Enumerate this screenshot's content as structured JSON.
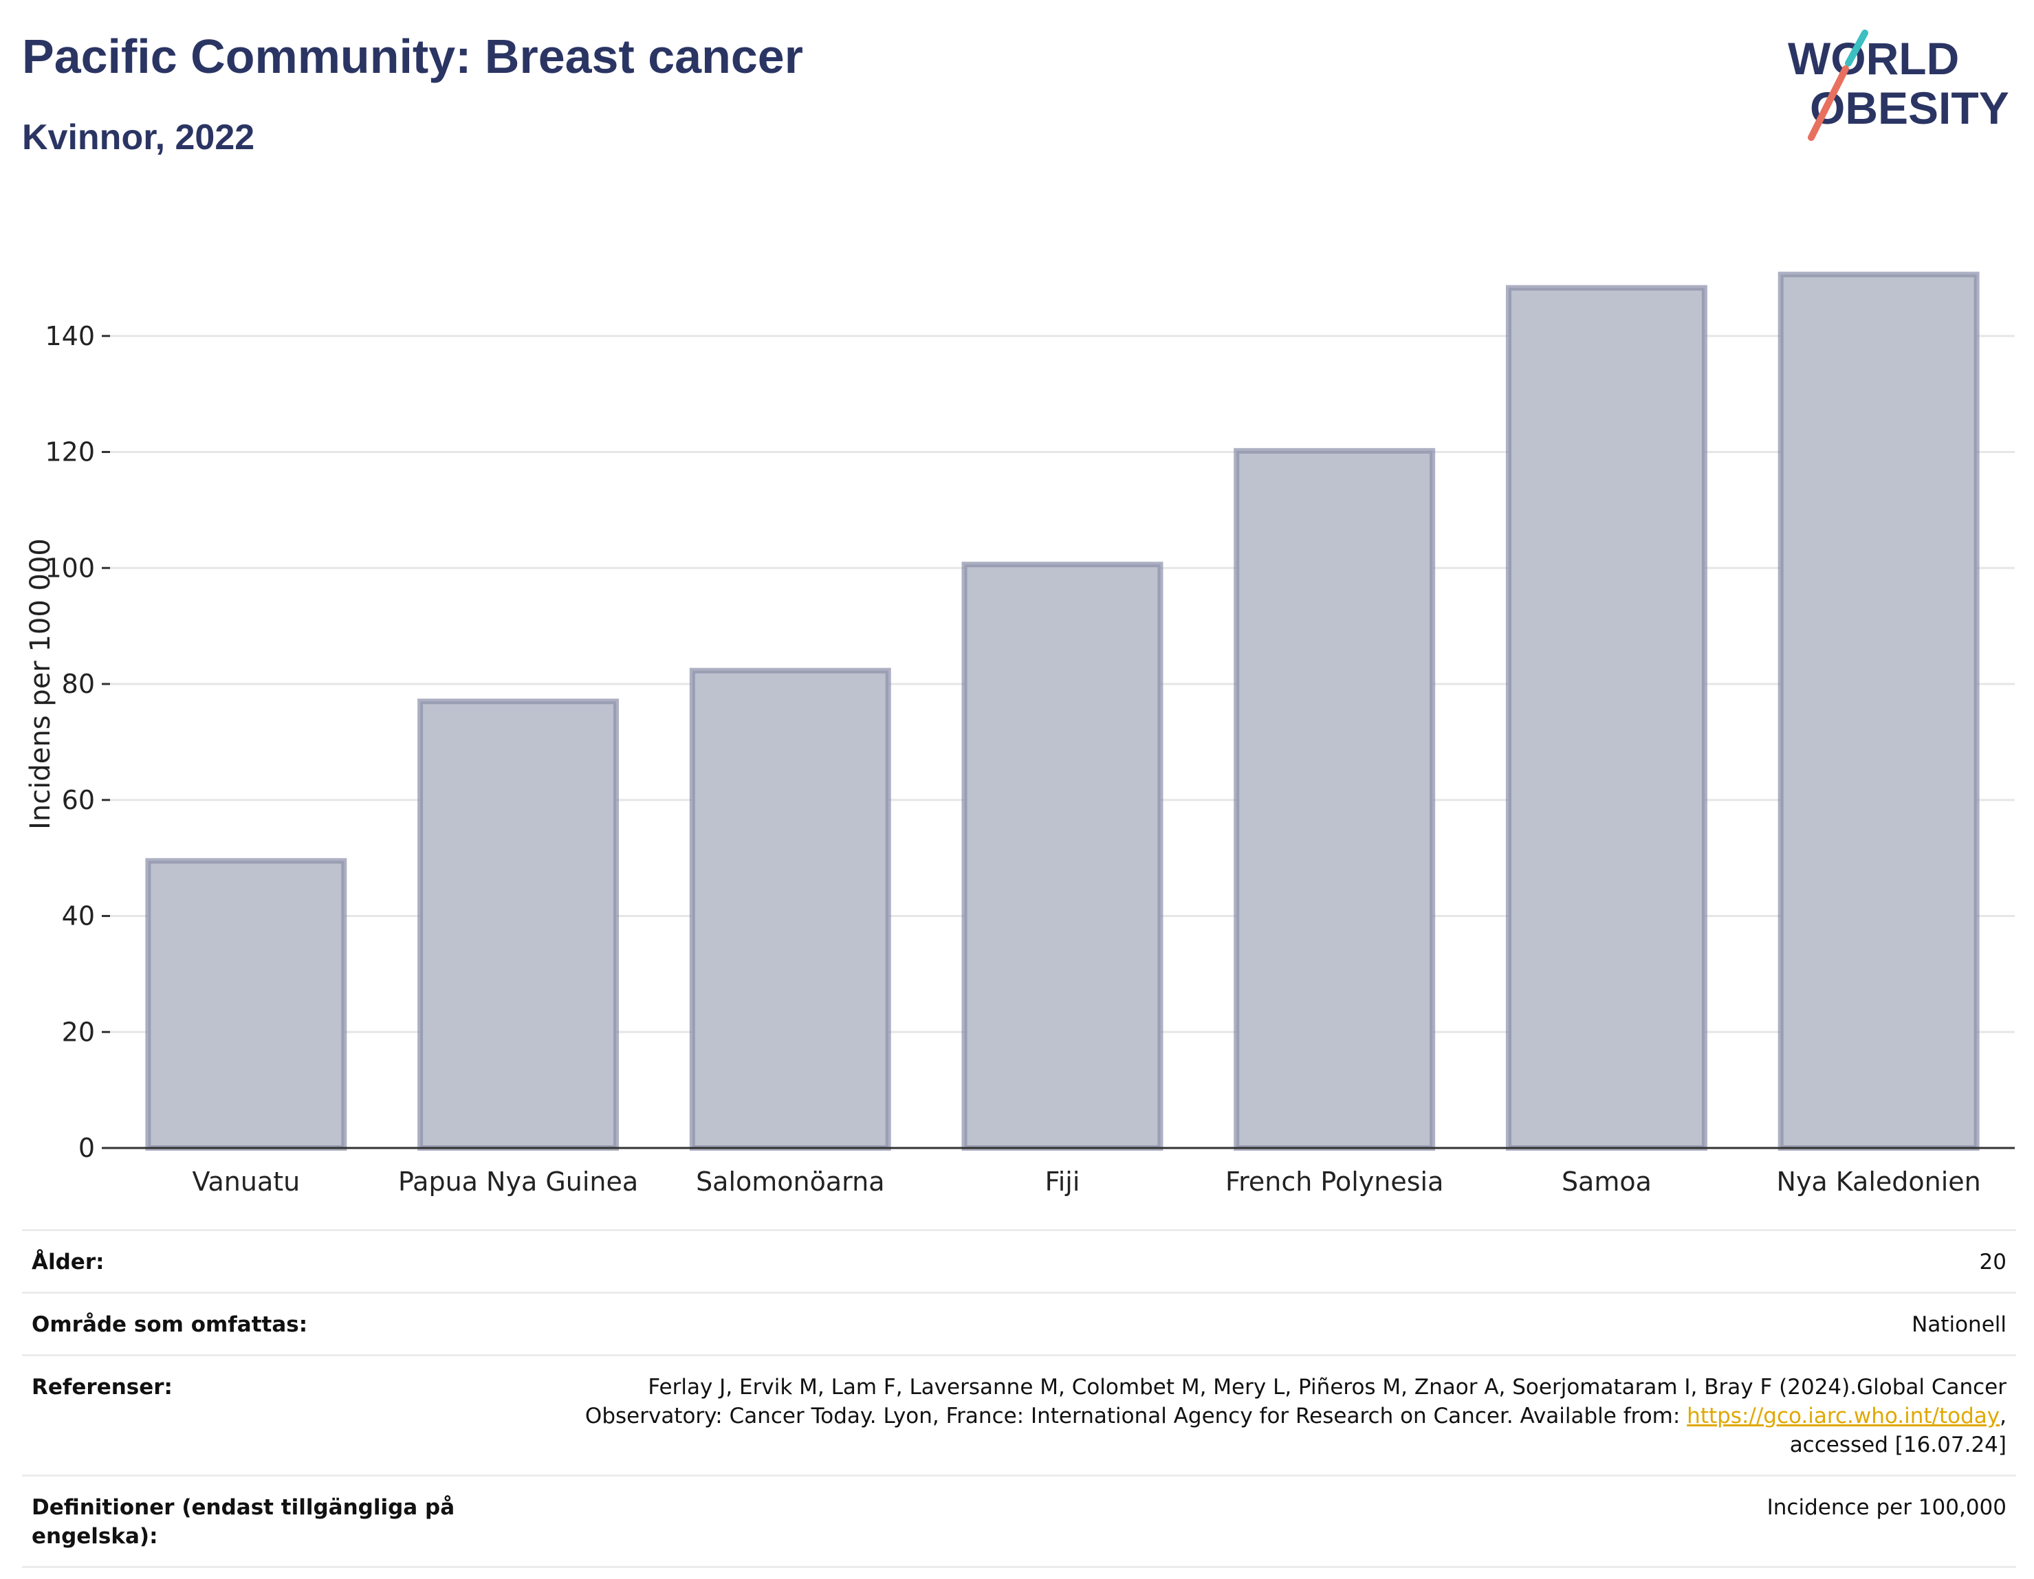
{
  "header": {
    "title": "Pacific Community: Breast cancer",
    "subtitle": "Kvinnor, 2022"
  },
  "logo": {
    "line1": "WORLD",
    "line2": "OBESITY",
    "colors": {
      "text": "#2b3563",
      "slash_teal": "#3bbfc1",
      "slash_coral": "#e8705f"
    }
  },
  "chart_data": {
    "type": "bar",
    "categories": [
      "Vanuatu",
      "Papua Nya Guinea",
      "Salomonöarna",
      "Fiji",
      "French Polynesia",
      "Samoa",
      "Nya Kaledonien"
    ],
    "values": [
      49.5,
      77,
      82.3,
      100.6,
      120.2,
      148.3,
      150.6
    ],
    "ylabel": "Incidens per 100 000",
    "xlabel": "",
    "ylim": [
      0,
      160
    ],
    "yticks": [
      0,
      20,
      40,
      60,
      80,
      100,
      120,
      140
    ],
    "grid": true,
    "legend": "none",
    "colors": {
      "bar_fill": "#bec1ce",
      "bar_stroke": "#8a8fa8"
    }
  },
  "meta": {
    "rows": [
      {
        "key": "Ålder:",
        "value": "20"
      },
      {
        "key": "Område som omfattas:",
        "value": "Nationell"
      },
      {
        "key": "Referenser:",
        "value_line1": "Ferlay J, Ervik M, Lam F, Laversanne M, Colombet M, Mery L, Piñeros M, Znaor A, Soerjomataram I, Bray F (2024).Global Cancer",
        "value_line2_pre": "Observatory: Cancer Today. Lyon, France: International Agency for Research on Cancer. Available from: ",
        "link": "https://gco.iarc.who.int/today",
        "value_line2_post": ",",
        "value_line3": "accessed [16.07.24]"
      },
      {
        "key": "Definitioner (endast tillgängliga på engelska):",
        "value": "Incidence per 100,000"
      }
    ]
  }
}
